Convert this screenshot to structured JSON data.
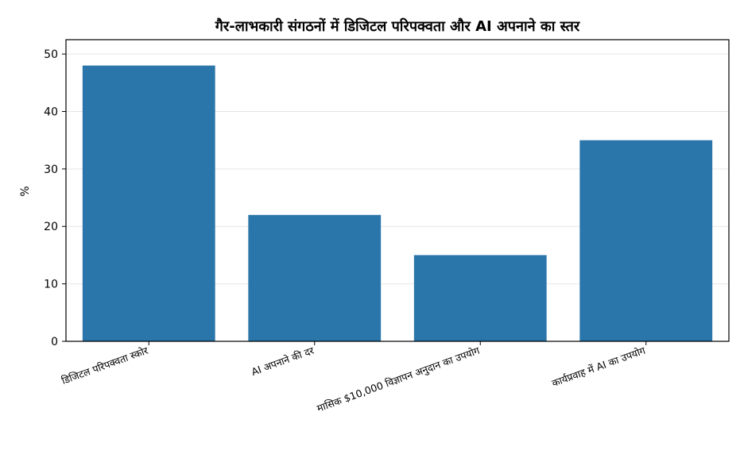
{
  "chart_data": {
    "type": "bar",
    "title": "गैर-लाभकारी संगठनों में डिजिटल परिपक्वता और AI अपनाने का स्तर",
    "xlabel": "",
    "ylabel": "%",
    "categories": [
      "डिजिटल परिपक्वता स्कोर",
      "AI अपनाने की दर",
      "मासिक $10,000 विज्ञापन अनुदान का उपयोग",
      "कार्यप्रवाह में AI का उपयोग"
    ],
    "values": [
      48,
      22,
      15,
      35
    ],
    "ylim": [
      0,
      50
    ],
    "yticks": [
      0,
      10,
      20,
      30,
      40,
      50
    ],
    "grid": true,
    "colors": {
      "bar": "#2a75a9",
      "grid": "#e6e6e6",
      "axis": "#000000"
    }
  }
}
